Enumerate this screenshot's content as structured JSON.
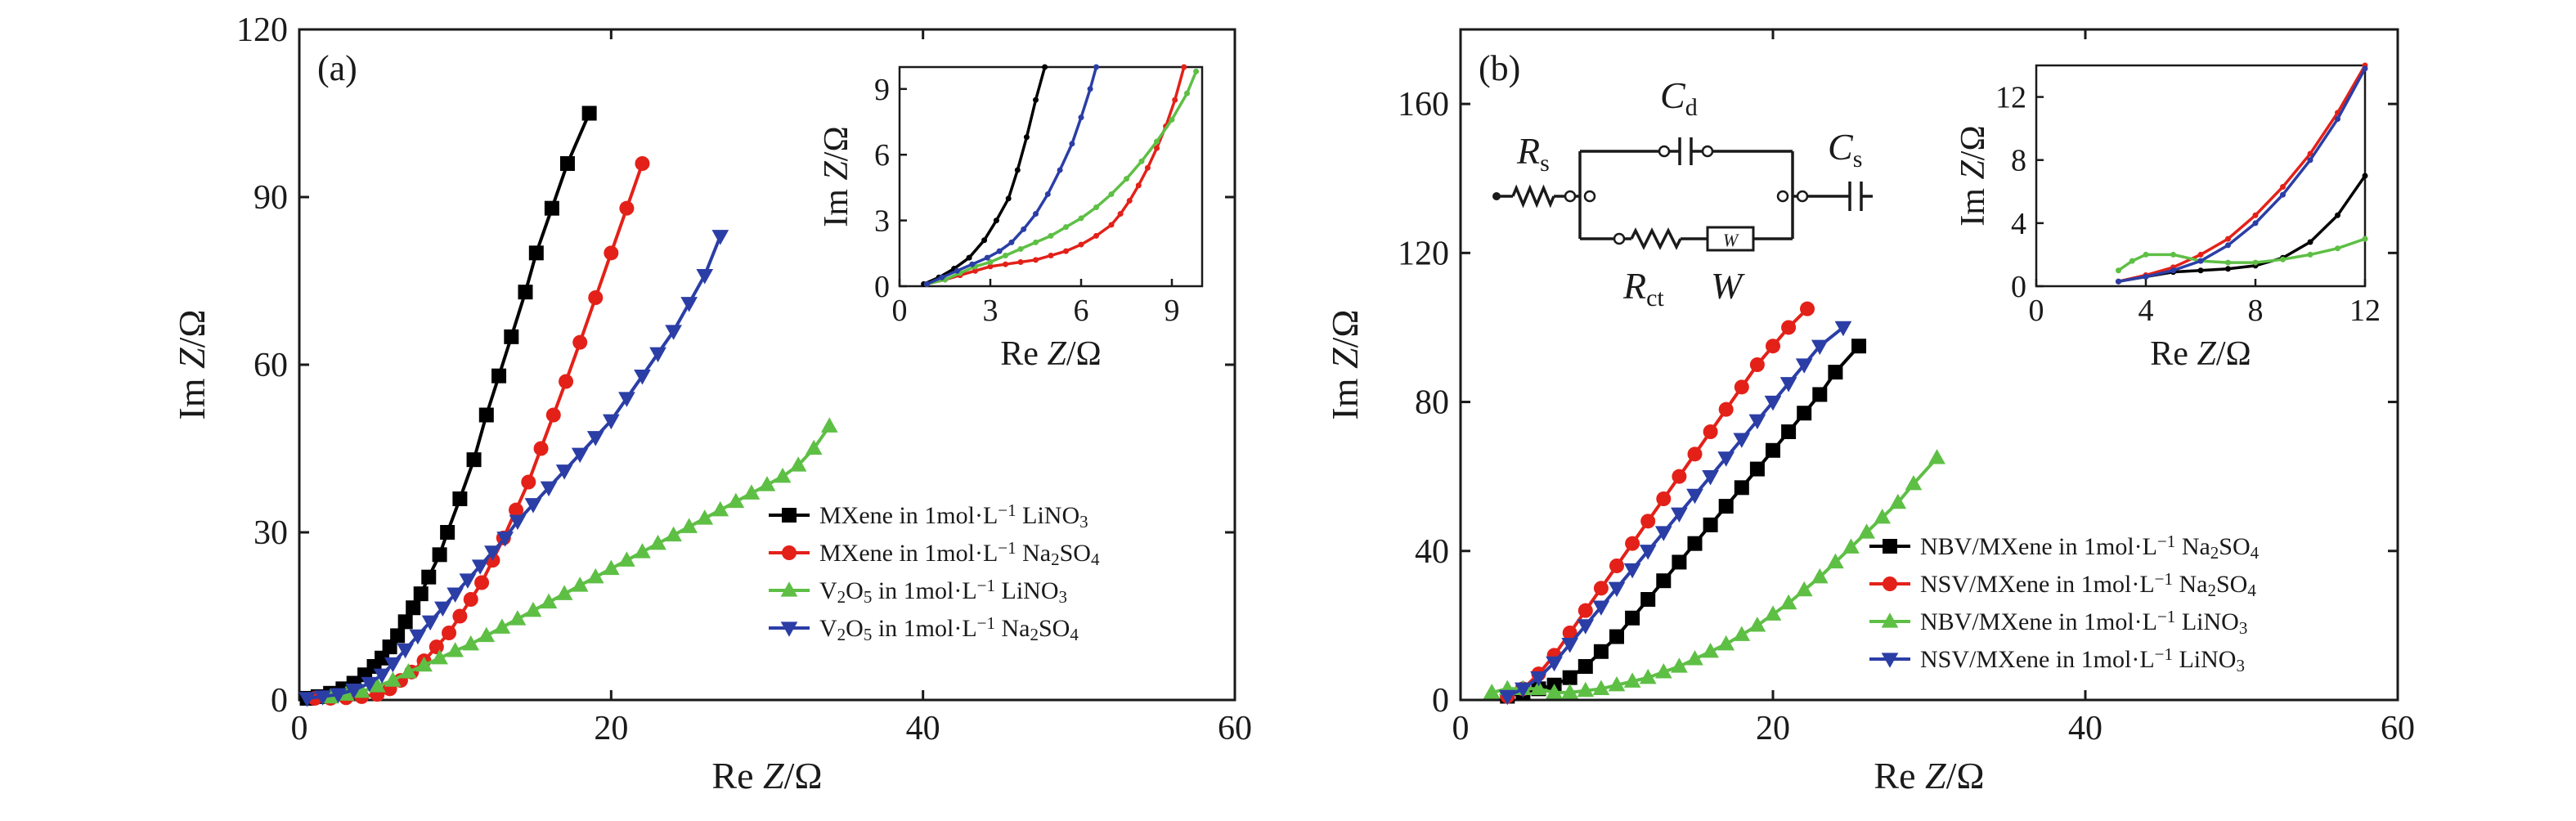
{
  "figure": {
    "background": "#ffffff",
    "series_colors": {
      "black": "#000000",
      "red": "#e32119",
      "green": "#5ebf45",
      "blue": "#2b3ea6"
    }
  },
  "chart_data": [
    {
      "type": "line",
      "panel_label": "(a)",
      "xlabel": "Re Z/Ω",
      "ylabel": "Im Z/Ω",
      "xlim": [
        0,
        60
      ],
      "ylim": [
        0,
        120
      ],
      "xticks": [
        0,
        20,
        40,
        60
      ],
      "yticks": [
        0,
        30,
        60,
        90,
        120
      ],
      "legend_position": "lower-right",
      "series": [
        {
          "name": "MXene in 1mol·L⁻¹ LiNO₃",
          "legend": [
            "MXene in 1mol·L",
            "−1",
            " LiNO",
            "3",
            ""
          ],
          "color": "#000000",
          "marker": "square",
          "x": [
            0.5,
            1.2,
            2,
            2.8,
            3.5,
            4.2,
            4.8,
            5.3,
            5.8,
            6.3,
            6.8,
            7.3,
            7.8,
            8.3,
            9,
            9.5,
            10.3,
            11.2,
            12,
            12.8,
            13.6,
            14.5,
            15.2,
            16.2,
            17.2,
            18.6
          ],
          "y": [
            0.3,
            0.6,
            1.2,
            2,
            3,
            4.5,
            6,
            7.5,
            9.5,
            11.5,
            14,
            16.5,
            19,
            22,
            26,
            30,
            36,
            43,
            51,
            58,
            65,
            73,
            80,
            88,
            96,
            105
          ]
        },
        {
          "name": "MXene in 1mol·L⁻¹ Na₂SO₄",
          "legend": [
            "MXene in 1mol·L",
            "−1",
            " Na",
            "2",
            "SO",
            "4"
          ],
          "color": "#e32119",
          "marker": "circle",
          "x": [
            1,
            2,
            3,
            4,
            5,
            5.8,
            6.5,
            7.2,
            8,
            8.8,
            9.6,
            10.3,
            11,
            11.7,
            12.4,
            13.1,
            13.9,
            14.7,
            15.5,
            16.3,
            17.1,
            18,
            19,
            20,
            21,
            22
          ],
          "y": [
            0.3,
            0.3,
            0.4,
            0.6,
            1,
            2,
            3.5,
            5,
            7,
            9.5,
            12,
            15,
            18,
            21,
            25,
            29,
            34,
            39,
            45,
            51,
            57,
            64,
            72,
            80,
            88,
            96
          ]
        },
        {
          "name": "V₂O₅ in 1mol·L⁻¹ LiNO₃",
          "legend": [
            "V",
            "2",
            "O",
            "5",
            " in 1mol·L",
            "−1",
            " LiNO",
            "3"
          ],
          "color": "#5ebf45",
          "marker": "triangle-up",
          "x": [
            2,
            3,
            4,
            5,
            6,
            7,
            8,
            9,
            10,
            11,
            12,
            13,
            14,
            15,
            16,
            17,
            18,
            19,
            20,
            21,
            22,
            23,
            24,
            25,
            26,
            27,
            28,
            29,
            30,
            31,
            32,
            33,
            34
          ],
          "y": [
            0.5,
            1,
            1.5,
            2.5,
            3.5,
            5,
            6.2,
            7.5,
            8.8,
            10,
            11.5,
            13,
            14.5,
            16,
            17.5,
            19,
            20.5,
            22,
            23.5,
            25,
            26.5,
            28,
            29.5,
            31,
            32.5,
            34,
            35.5,
            37,
            38.5,
            40,
            42,
            45,
            49
          ]
        },
        {
          "name": "V₂O₅ in 1mol·L⁻¹ Na₂SO₄",
          "legend": [
            "V",
            "2",
            "O",
            "5",
            " in 1mol·L",
            "−1",
            " Na",
            "2",
            "SO",
            "4"
          ],
          "color": "#2b3ea6",
          "marker": "triangle-down",
          "x": [
            0.5,
            1.5,
            2.5,
            3.5,
            4.5,
            5.3,
            6,
            6.8,
            7.6,
            8.4,
            9.2,
            10,
            10.8,
            11.6,
            12.4,
            13.2,
            14,
            15,
            16,
            17,
            18,
            19,
            20,
            21,
            22,
            23,
            24,
            25,
            26,
            27
          ],
          "y": [
            0.3,
            0.6,
            1,
            1.8,
            3,
            4.5,
            6.5,
            9,
            11.5,
            14,
            16.5,
            19,
            21.5,
            24,
            26.5,
            29,
            32,
            35,
            38,
            41,
            44,
            47,
            50,
            54,
            58,
            62,
            66,
            71,
            76,
            83
          ]
        }
      ],
      "inset": {
        "xlabel": "Re Z/Ω",
        "ylabel": "Im Z/Ω",
        "xlim": [
          0,
          10
        ],
        "ylim": [
          0,
          10
        ],
        "xticks": [
          0,
          3,
          6,
          9
        ],
        "yticks": [
          0,
          3,
          6,
          9
        ],
        "series": [
          {
            "color": "#000000",
            "x": [
              0.8,
              1.3,
              1.8,
              2.3,
              2.8,
              3.2,
              3.6,
              3.9,
              4.2,
              4.5,
              4.8
            ],
            "y": [
              0.1,
              0.4,
              0.8,
              1.3,
              2.1,
              3,
              4,
              5.3,
              6.8,
              8.5,
              10
            ]
          },
          {
            "color": "#e32119",
            "x": [
              0.9,
              1.5,
              2,
              2.5,
              3,
              3.5,
              4,
              4.5,
              5,
              5.5,
              6,
              6.5,
              7,
              7.3,
              7.6,
              7.9,
              8.2,
              8.5,
              8.8,
              9.1,
              9.4
            ],
            "y": [
              0.1,
              0.3,
              0.5,
              0.7,
              0.9,
              1,
              1.1,
              1.2,
              1.4,
              1.6,
              1.9,
              2.3,
              2.8,
              3.3,
              3.9,
              4.6,
              5.4,
              6.3,
              7.3,
              8.5,
              10
            ]
          },
          {
            "color": "#5ebf45",
            "x": [
              0.9,
              1.5,
              2,
              2.5,
              3,
              3.5,
              4,
              4.5,
              5,
              5.5,
              6,
              6.5,
              7,
              7.5,
              8,
              8.5,
              9,
              9.5,
              9.8
            ],
            "y": [
              0.1,
              0.3,
              0.6,
              0.9,
              1.1,
              1.4,
              1.7,
              2,
              2.3,
              2.7,
              3.1,
              3.6,
              4.2,
              4.9,
              5.7,
              6.6,
              7.6,
              8.8,
              9.8
            ]
          },
          {
            "color": "#2b3ea6",
            "x": [
              0.9,
              1.4,
              1.9,
              2.4,
              2.9,
              3.3,
              3.7,
              4.1,
              4.5,
              4.9,
              5.3,
              5.7,
              6,
              6.3,
              6.5
            ],
            "y": [
              0.1,
              0.4,
              0.7,
              1,
              1.3,
              1.6,
              2,
              2.6,
              3.3,
              4.2,
              5.3,
              6.5,
              7.7,
              9,
              10
            ]
          }
        ]
      }
    },
    {
      "type": "line",
      "panel_label": "(b)",
      "xlabel": "Re Z/Ω",
      "ylabel": "Im Z/Ω",
      "xlim": [
        0,
        60
      ],
      "ylim": [
        0,
        180
      ],
      "xticks": [
        0,
        20,
        40,
        60
      ],
      "yticks": [
        0,
        40,
        80,
        120,
        160
      ],
      "legend_position": "lower-right",
      "series": [
        {
          "name": "NBV/MXene in 1mol·L⁻¹ Na₂SO₄",
          "legend": [
            "NBV/MXene in 1mol·L",
            "−1",
            " Na",
            "2",
            "SO",
            "4"
          ],
          "color": "#000000",
          "marker": "square",
          "x": [
            3,
            4,
            5,
            6,
            7,
            8,
            9,
            10,
            11,
            12,
            13,
            14,
            15,
            16,
            17,
            18,
            19,
            20,
            21,
            22,
            23,
            24,
            25.5
          ],
          "y": [
            1,
            2,
            3,
            4,
            6,
            9,
            13,
            17,
            22,
            27,
            32,
            37,
            42,
            47,
            52,
            57,
            62,
            67,
            72,
            77,
            82,
            88,
            95
          ]
        },
        {
          "name": "NSV/MXene in 1mol·L⁻¹ Na₂SO₄",
          "legend": [
            "NSV/MXene in 1mol·L",
            "−1",
            " Na",
            "2",
            "SO",
            "4"
          ],
          "color": "#e32119",
          "marker": "circle",
          "x": [
            3,
            4,
            5,
            6,
            7,
            8,
            9,
            10,
            11,
            12,
            13,
            14,
            15,
            16,
            17,
            18,
            19,
            20,
            21,
            22.2
          ],
          "y": [
            1,
            3,
            7,
            12,
            18,
            24,
            30,
            36,
            42,
            48,
            54,
            60,
            66,
            72,
            78,
            84,
            90,
            95,
            100,
            105
          ]
        },
        {
          "name": "NBV/MXene in 1mol·L⁻¹ LiNO₃",
          "legend": [
            "NBV/MXene in 1mol·L",
            "−1",
            " LiNO",
            "3",
            ""
          ],
          "color": "#5ebf45",
          "marker": "triangle-up",
          "x": [
            2,
            3,
            4,
            5,
            6,
            7,
            8,
            9,
            10,
            11,
            12,
            13,
            14,
            15,
            16,
            17,
            18,
            19,
            20,
            21,
            22,
            23,
            24,
            25,
            26,
            27,
            28,
            29,
            30.5
          ],
          "y": [
            2,
            3,
            3,
            3,
            2,
            2,
            2.5,
            3,
            4,
            5,
            6,
            7.5,
            9,
            11,
            13,
            15,
            17.5,
            20,
            23,
            26,
            29.5,
            33,
            37,
            41,
            45,
            49,
            53,
            58,
            65
          ]
        },
        {
          "name": "NSV/MXene in 1mol·L⁻¹ LiNO₃",
          "legend": [
            "NSV/MXene in 1mol·L",
            "−1",
            " LiNO",
            "3",
            ""
          ],
          "color": "#2b3ea6",
          "marker": "triangle-down",
          "x": [
            3,
            4,
            5,
            6,
            7,
            8,
            9,
            10,
            11,
            12,
            13,
            14,
            15,
            16,
            17,
            18,
            19,
            20,
            21,
            22,
            23,
            24.5
          ],
          "y": [
            1,
            3,
            6,
            10,
            15,
            20,
            25,
            30,
            35,
            40,
            45,
            50,
            55,
            60,
            65,
            70,
            75,
            80,
            85,
            90,
            95,
            100
          ]
        }
      ],
      "inset": {
        "xlabel": "Re Z/Ω",
        "ylabel": "Im Z/Ω",
        "xlim": [
          0,
          12
        ],
        "ylim": [
          0,
          14
        ],
        "xticks": [
          0,
          4,
          8,
          12
        ],
        "yticks": [
          0,
          4,
          8,
          12
        ],
        "series": [
          {
            "color": "#000000",
            "x": [
              3,
              4,
              5,
              6,
              7,
              8,
              9,
              10,
              11,
              12
            ],
            "y": [
              0.3,
              0.6,
              0.9,
              1,
              1.1,
              1.3,
              1.8,
              2.8,
              4.5,
              7
            ]
          },
          {
            "color": "#e32119",
            "x": [
              3,
              4,
              5,
              6,
              7,
              8,
              9,
              10,
              11,
              12
            ],
            "y": [
              0.3,
              0.7,
              1.2,
              2,
              3,
              4.5,
              6.3,
              8.4,
              11,
              14
            ]
          },
          {
            "color": "#5ebf45",
            "x": [
              3,
              3.5,
              4,
              5,
              6,
              7,
              8,
              9,
              10,
              11,
              12
            ],
            "y": [
              1,
              1.6,
              2,
              2,
              1.6,
              1.5,
              1.5,
              1.7,
              2,
              2.4,
              3
            ]
          },
          {
            "color": "#2b3ea6",
            "x": [
              3,
              4,
              5,
              6,
              7,
              8,
              9,
              10,
              11,
              12
            ],
            "y": [
              0.3,
              0.6,
              1,
              1.6,
              2.6,
              4,
              5.8,
              8,
              10.6,
              13.8
            ]
          }
        ]
      },
      "circuit": {
        "labels": [
          {
            "main": "R",
            "sub": "s"
          },
          {
            "main": "C",
            "sub": "d"
          },
          {
            "main": "C",
            "sub": "s"
          },
          {
            "main": "R",
            "sub": "ct"
          },
          {
            "main": "W",
            "sub": ""
          }
        ],
        "warburg_box": "W"
      }
    }
  ]
}
